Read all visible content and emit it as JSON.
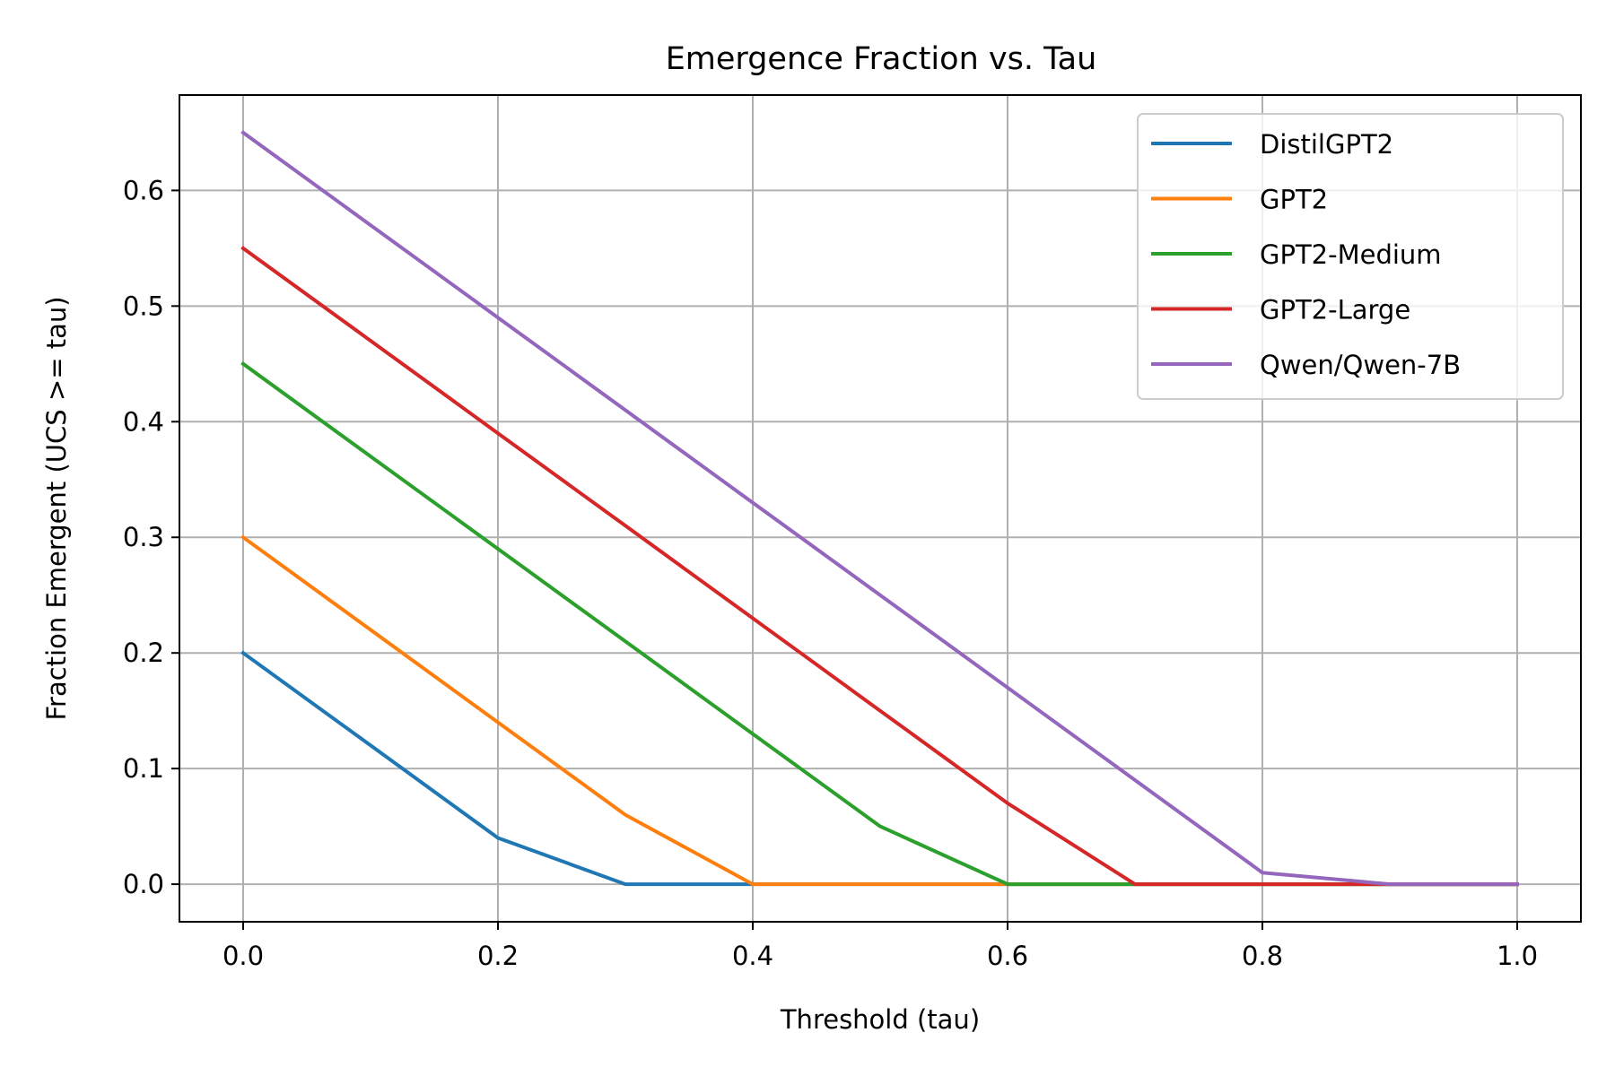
{
  "chart_data": {
    "type": "line",
    "title": "Emergence Fraction vs. Tau",
    "xlabel": "Threshold (tau)",
    "ylabel": "Fraction Emergent (UCS >= tau)",
    "xlim": [
      -0.05,
      1.05
    ],
    "ylim": [
      -0.0325,
      0.6825
    ],
    "xticks": [
      0.0,
      0.2,
      0.4,
      0.6,
      0.8,
      1.0
    ],
    "xtick_labels": [
      "0.0",
      "0.2",
      "0.4",
      "0.6",
      "0.8",
      "1.0"
    ],
    "yticks": [
      0.0,
      0.1,
      0.2,
      0.3,
      0.4,
      0.5,
      0.6
    ],
    "ytick_labels": [
      "0.0",
      "0.1",
      "0.2",
      "0.3",
      "0.4",
      "0.5",
      "0.6"
    ],
    "grid": true,
    "legend_position": "top-right",
    "x": [
      0.0,
      0.1,
      0.2,
      0.3,
      0.4,
      0.5,
      0.6,
      0.7,
      0.8,
      0.9,
      1.0
    ],
    "series": [
      {
        "name": "DistilGPT2",
        "color": "#1f77b4",
        "values": [
          0.2,
          0.12,
          0.04,
          0.0,
          0.0,
          0.0,
          0.0,
          0.0,
          0.0,
          0.0,
          0.0
        ]
      },
      {
        "name": "GPT2",
        "color": "#ff7f0e",
        "values": [
          0.3,
          0.22,
          0.14,
          0.06,
          0.0,
          0.0,
          0.0,
          0.0,
          0.0,
          0.0,
          0.0
        ]
      },
      {
        "name": "GPT2-Medium",
        "color": "#2ca02c",
        "values": [
          0.45,
          0.37,
          0.29,
          0.21,
          0.13,
          0.05,
          0.0,
          0.0,
          0.0,
          0.0,
          0.0
        ]
      },
      {
        "name": "GPT2-Large",
        "color": "#d62728",
        "values": [
          0.55,
          0.47,
          0.39,
          0.31,
          0.23,
          0.15,
          0.07,
          0.0,
          0.0,
          0.0,
          0.0
        ]
      },
      {
        "name": "Qwen/Qwen-7B",
        "color": "#9467bd",
        "values": [
          0.65,
          0.57,
          0.49,
          0.41,
          0.33,
          0.25,
          0.17,
          0.09,
          0.01,
          0.0,
          0.0
        ]
      }
    ]
  }
}
